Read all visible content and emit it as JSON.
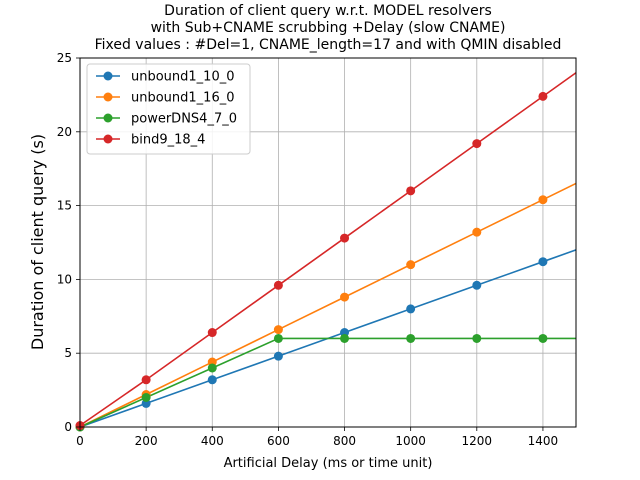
{
  "chart_data": {
    "type": "line",
    "title": [
      "Duration of client query w.r.t. MODEL resolvers",
      "with Sub+CNAME scrubbing +Delay (slow CNAME)",
      "Fixed values : #Del=1, CNAME_length=17 and  with QMIN disabled"
    ],
    "xlabel": "Artificial Delay (ms or time unit)",
    "ylabel": "Duration of client query (s)",
    "xlim": [
      0,
      1500
    ],
    "ylim": [
      0,
      25
    ],
    "xticks": [
      0,
      200,
      400,
      600,
      800,
      1000,
      1200,
      1400
    ],
    "yticks": [
      0,
      5,
      10,
      15,
      20,
      25
    ],
    "grid": true,
    "legend_position": "top-left",
    "x": [
      0,
      200,
      400,
      600,
      800,
      1000,
      1200,
      1400,
      1500
    ],
    "marker_x": [
      0,
      200,
      400,
      600,
      800,
      1000,
      1200,
      1400
    ],
    "series": [
      {
        "name": "unbound1_10_0",
        "color": "#1f77b4",
        "values": [
          0,
          1.6,
          3.2,
          4.8,
          6.4,
          8.0,
          9.6,
          11.2,
          12.0
        ]
      },
      {
        "name": "unbound1_16_0",
        "color": "#ff7f0e",
        "values": [
          0,
          2.2,
          4.4,
          6.6,
          8.8,
          11.0,
          13.2,
          15.4,
          16.5
        ]
      },
      {
        "name": "powerDNS4_7_0",
        "color": "#2ca02c",
        "values": [
          0,
          2.0,
          4.0,
          6.0,
          6.0,
          6.0,
          6.0,
          6.0,
          6.0
        ]
      },
      {
        "name": "bind9_18_4",
        "color": "#d62728",
        "values": [
          0.1,
          3.2,
          6.4,
          9.6,
          12.8,
          16.0,
          19.2,
          22.4,
          24.0
        ]
      }
    ]
  }
}
